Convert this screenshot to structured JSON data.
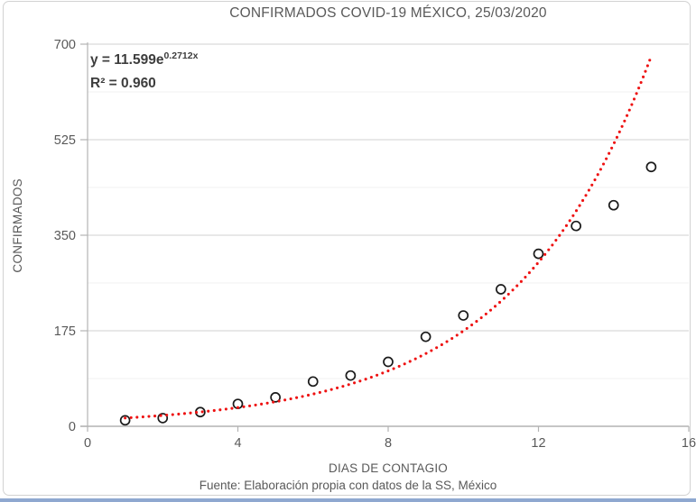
{
  "annotation": {
    "equation_base": "y = 11.599e",
    "equation_exponent": "0.2712x",
    "r2": "R² = 0.960"
  },
  "footer": {
    "source": "Fuente: Elaboración propia con datos de la SS, México"
  },
  "chart_data": {
    "type": "scatter",
    "title": "CONFIRMADOS COVID-19 MÉXICO, 25/03/2020",
    "xlabel": "DIAS DE CONTAGIO",
    "ylabel": "CONFIRMADOS",
    "x": [
      1,
      2,
      3,
      4,
      5,
      6,
      7,
      8,
      9,
      10,
      11,
      12,
      13,
      14,
      15
    ],
    "y": [
      11,
      15,
      26,
      41,
      53,
      82,
      93,
      118,
      164,
      203,
      251,
      316,
      367,
      405,
      475
    ],
    "xlim": [
      0,
      16
    ],
    "ylim": [
      0,
      700
    ],
    "x_ticks": [
      0,
      4,
      8,
      12,
      16
    ],
    "y_ticks": [
      0,
      175,
      350,
      525,
      700
    ],
    "y_minor_step": 87.5,
    "grid": true,
    "legend": "none",
    "marker": {
      "shape": "open-circle",
      "radius": 5,
      "stroke": "#1a1a1a"
    },
    "trendline": {
      "type": "exponential",
      "a": 11.599,
      "b": 0.2712,
      "x_start": 1,
      "x_end": 15,
      "equation": "y = 11.599e^(0.2712x)",
      "r_squared": 0.96,
      "style": "dotted",
      "color": "#ee1111"
    },
    "colors": {
      "grid_major": "#d9d9d9",
      "grid_minor": "#f2f2f2",
      "axis_line": "#b3b3b3",
      "tick_text": "#595959",
      "bottom_bar": "#8fa8d0"
    }
  }
}
